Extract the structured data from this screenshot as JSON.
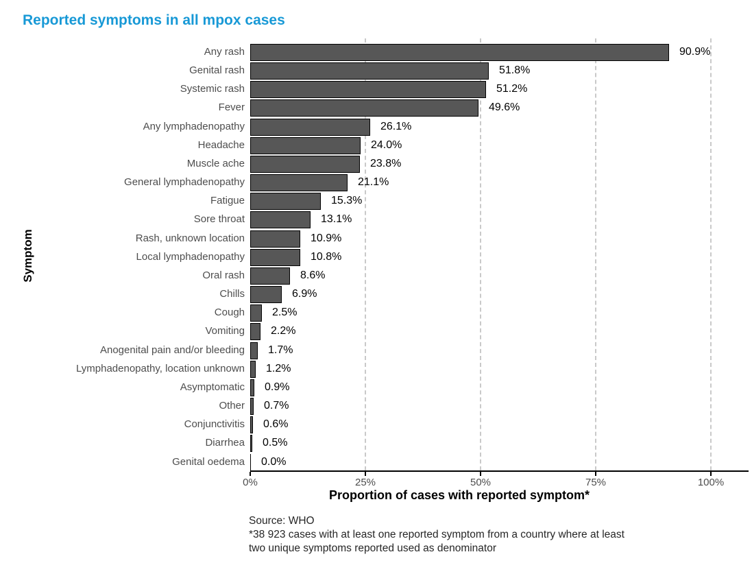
{
  "page_title": "Reported symptoms in all mpox cases",
  "chart_data": {
    "type": "bar",
    "orientation": "horizontal",
    "title": "Reported symptoms in all mpox cases",
    "xlabel": "Proportion of cases with reported symptom*",
    "ylabel": "Symptom",
    "categories": [
      "Any rash",
      "Genital rash",
      "Systemic rash",
      "Fever",
      "Any lymphadenopathy",
      "Headache",
      "Muscle ache",
      "General lymphadenopathy",
      "Fatigue",
      "Sore throat",
      "Rash, unknown location",
      "Local lymphadenopathy",
      "Oral rash",
      "Chills",
      "Cough",
      "Vomiting",
      "Anogenital pain and/or bleeding",
      "Lymphadenopathy, location unknown",
      "Asymptomatic",
      "Other",
      "Conjunctivitis",
      "Diarrhea",
      "Genital oedema"
    ],
    "values": [
      90.9,
      51.8,
      51.2,
      49.6,
      26.1,
      24.0,
      23.8,
      21.1,
      15.3,
      13.1,
      10.9,
      10.8,
      8.6,
      6.9,
      2.5,
      2.2,
      1.7,
      1.2,
      0.9,
      0.7,
      0.6,
      0.5,
      0.0
    ],
    "value_suffix": "%",
    "xlim": [
      0,
      100
    ],
    "x_ticks": [
      {
        "value": 0,
        "label": "0%"
      },
      {
        "value": 25,
        "label": "25%"
      },
      {
        "value": 50,
        "label": "50%"
      },
      {
        "value": 75,
        "label": "75%"
      },
      {
        "value": 100,
        "label": "100%"
      }
    ],
    "grid": {
      "axis": "x",
      "style": "dashed",
      "at": [
        25,
        50,
        75,
        100
      ]
    },
    "legend": "none",
    "colors": {
      "bar_fill": "#575757",
      "bar_border": "#000000",
      "title": "#1899D6",
      "gridline": "#C9C9C9",
      "axis_line": "#000000",
      "category_label": "#4D4D4D",
      "tick_label": "#4D4D4D",
      "value_label": "#000000"
    }
  },
  "footer": {
    "source": "Source: WHO",
    "note_lines": [
      "*38 923 cases with at least one reported symptom from a country where at least",
      "two unique symptoms reported used as denominator"
    ]
  }
}
